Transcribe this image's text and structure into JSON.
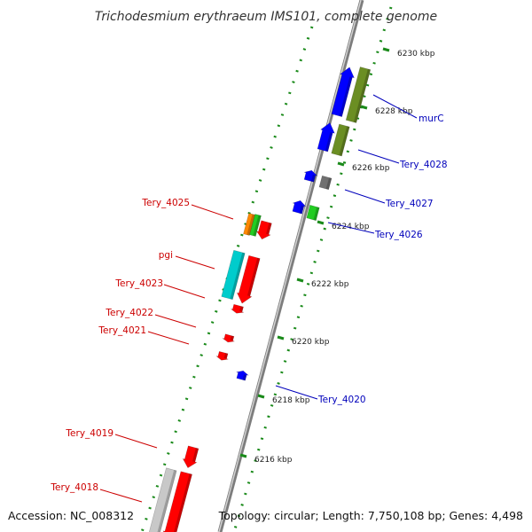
{
  "header": {
    "title": "Trichodesmium erythraeum IMS101, complete genome"
  },
  "footer": {
    "accession": "Accession: NC_008312",
    "summary": "Topology: circular; Length: 7,750,108 bp; Genes: 4,498"
  },
  "colors": {
    "backbone": "#8a8a8a",
    "tick": "#1a8a1a",
    "reverse_label": "#cc0000",
    "forward_label": "#0000bb",
    "cds_forward": "#0000ff",
    "cds_reverse": "#ff0000",
    "olive": "#6b8e23",
    "cyan": "#00cccc",
    "orange": "#ff8800",
    "green": "#22cc22",
    "gray": "#707070",
    "silver": "#c8c8c8"
  },
  "ticks": [
    {
      "kbp": 6230,
      "label": "6230 kbp"
    },
    {
      "kbp": 6228,
      "label": "6228 kbp"
    },
    {
      "kbp": 6226,
      "label": "6226 kbp"
    },
    {
      "kbp": 6224,
      "label": "6224 kbp"
    },
    {
      "kbp": 6222,
      "label": "6222 kbp"
    },
    {
      "kbp": 6220,
      "label": "6220 kbp"
    },
    {
      "kbp": 6218,
      "label": "6218 kbp"
    },
    {
      "kbp": 6216,
      "label": "6216 kbp"
    }
  ],
  "genes": [
    {
      "name": "murC",
      "strand": "+"
    },
    {
      "name": "Tery_4028",
      "strand": "+"
    },
    {
      "name": "Tery_4027",
      "strand": "+"
    },
    {
      "name": "Tery_4026",
      "strand": "+"
    },
    {
      "name": "Tery_4025",
      "strand": "-"
    },
    {
      "name": "pgi",
      "strand": "-"
    },
    {
      "name": "Tery_4023",
      "strand": "-"
    },
    {
      "name": "Tery_4022",
      "strand": "-"
    },
    {
      "name": "Tery_4021",
      "strand": "-"
    },
    {
      "name": "Tery_4020",
      "strand": "+"
    },
    {
      "name": "Tery_4019",
      "strand": "-"
    },
    {
      "name": "Tery_4018",
      "strand": "-"
    }
  ]
}
